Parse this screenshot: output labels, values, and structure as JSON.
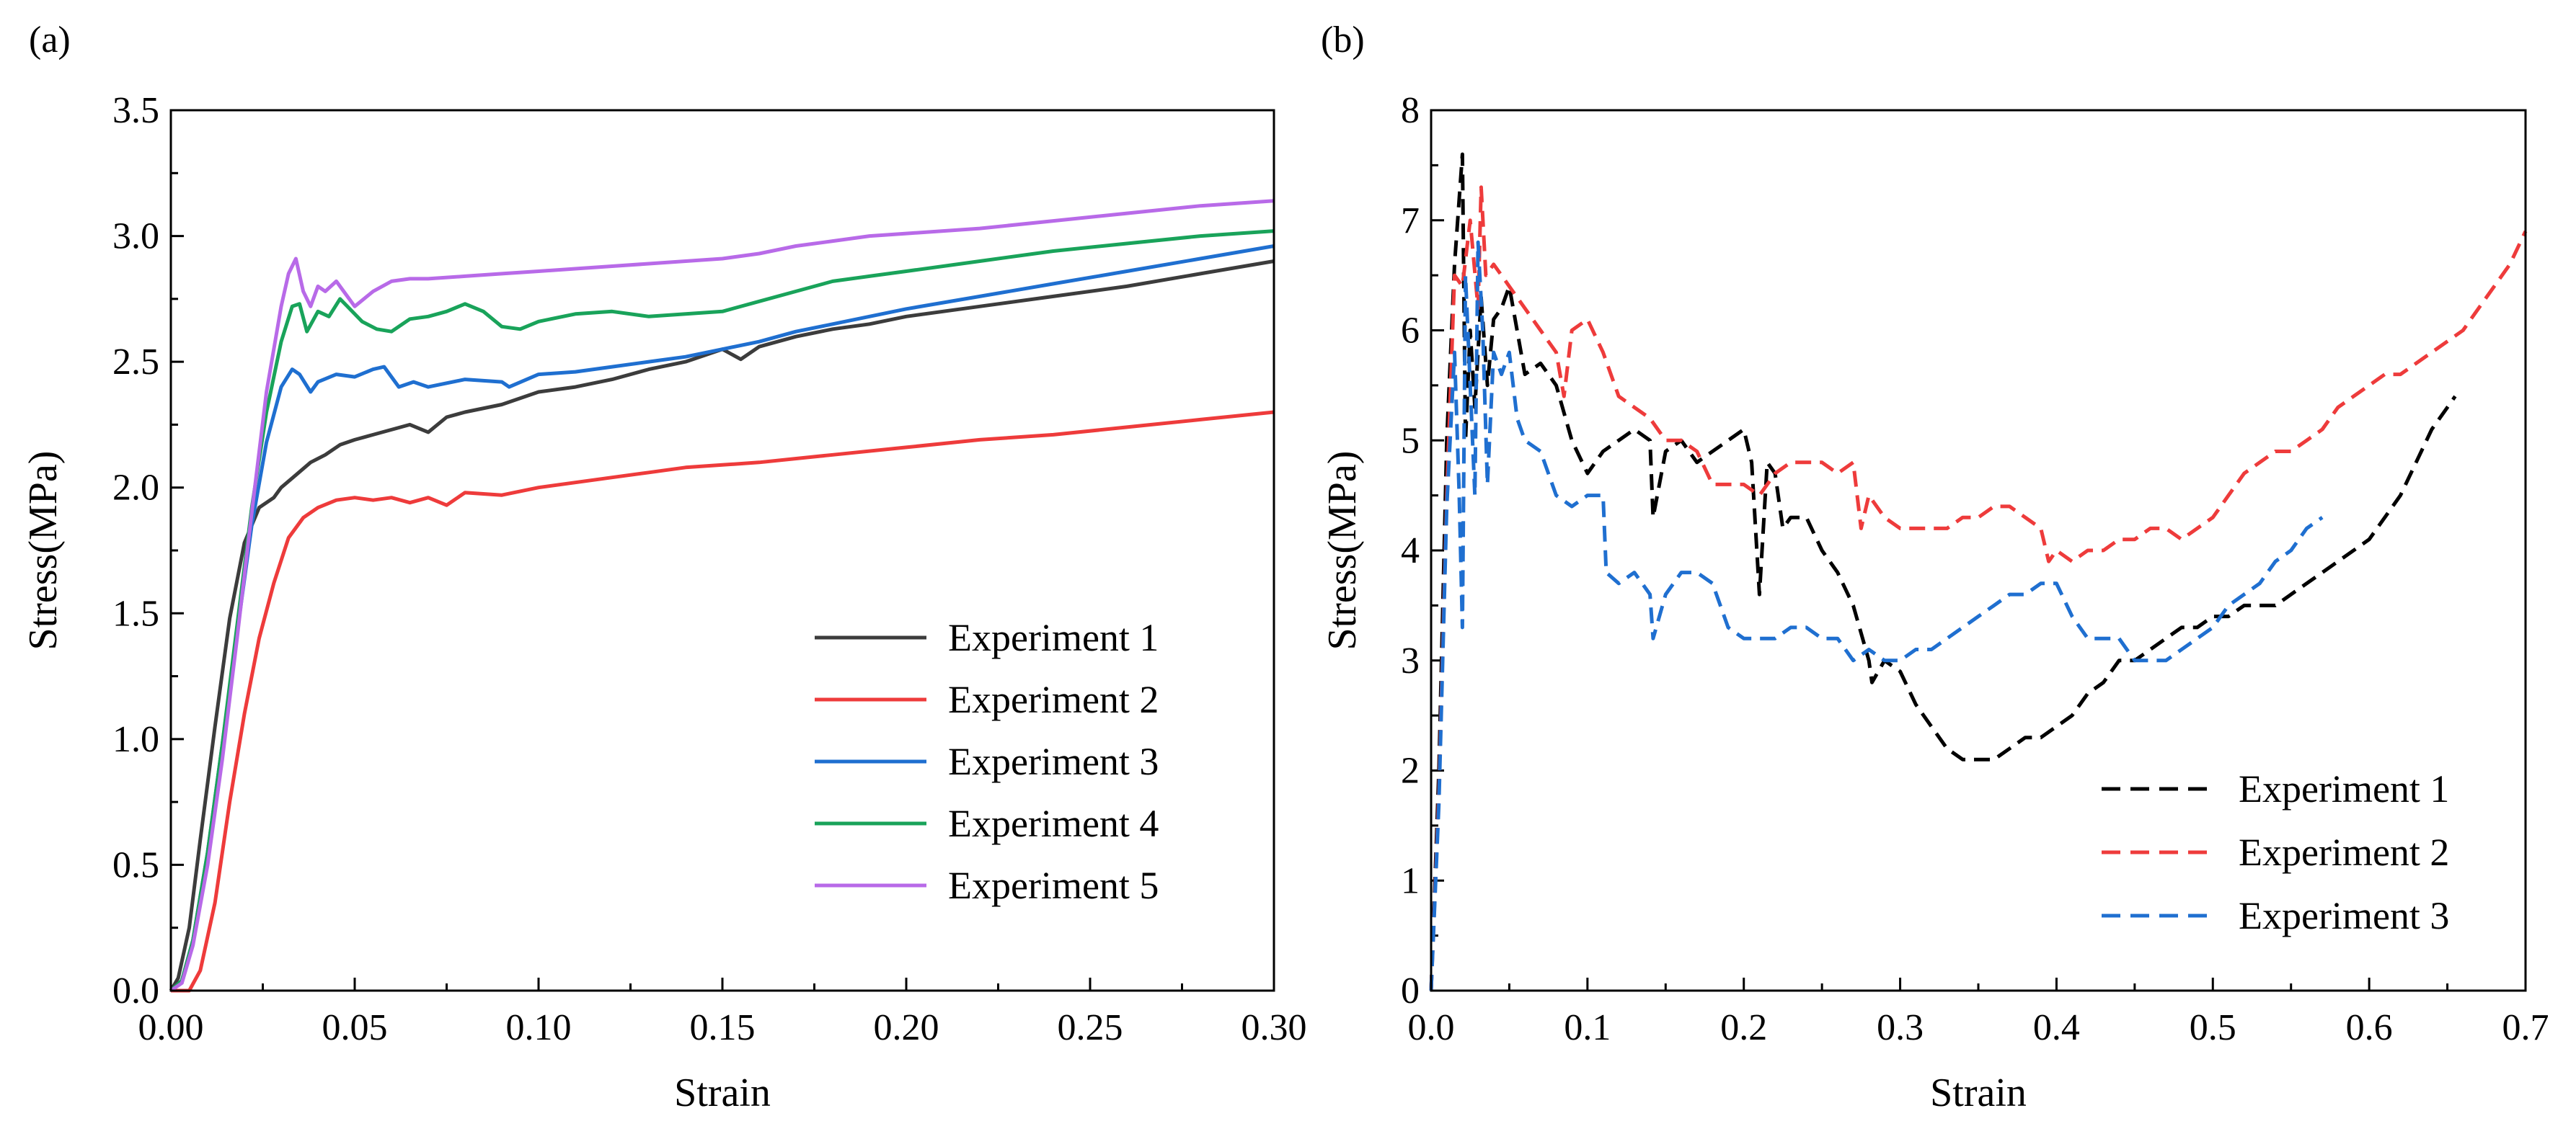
{
  "chart_data": [
    {
      "panel_label": "(a)",
      "type": "line",
      "xlabel": "Strain",
      "ylabel": "Stress(MPa)",
      "xlim": [
        0,
        0.3
      ],
      "ylim": [
        0,
        3.5
      ],
      "xticks": [
        "0.00",
        "0.05",
        "0.10",
        "0.15",
        "0.20",
        "0.25",
        "0.30"
      ],
      "xtick_values": [
        0,
        0.05,
        0.1,
        0.15,
        0.2,
        0.25,
        0.3
      ],
      "yticks": [
        "0.0",
        "0.5",
        "1.0",
        "1.5",
        "2.0",
        "2.5",
        "3.0",
        "3.5"
      ],
      "ytick_values": [
        0,
        0.5,
        1.0,
        1.5,
        2.0,
        2.5,
        3.0,
        3.5
      ],
      "legend_position": "bottom-right",
      "series": [
        {
          "name": "Experiment 1",
          "color": "#3c3c3c",
          "dash": "solid",
          "x": [
            0,
            0.002,
            0.005,
            0.008,
            0.012,
            0.016,
            0.02,
            0.024,
            0.028,
            0.03,
            0.034,
            0.038,
            0.042,
            0.046,
            0.05,
            0.055,
            0.06,
            0.065,
            0.07,
            0.075,
            0.08,
            0.09,
            0.1,
            0.11,
            0.12,
            0.13,
            0.14,
            0.15,
            0.155,
            0.16,
            0.17,
            0.18,
            0.19,
            0.2,
            0.22,
            0.24,
            0.26,
            0.28,
            0.3
          ],
          "y": [
            0,
            0.05,
            0.25,
            0.6,
            1.05,
            1.48,
            1.78,
            1.92,
            1.96,
            2.0,
            2.05,
            2.1,
            2.13,
            2.17,
            2.19,
            2.21,
            2.23,
            2.25,
            2.22,
            2.28,
            2.3,
            2.33,
            2.38,
            2.4,
            2.43,
            2.47,
            2.5,
            2.55,
            2.51,
            2.56,
            2.6,
            2.63,
            2.65,
            2.68,
            2.72,
            2.76,
            2.8,
            2.85,
            2.9
          ]
        },
        {
          "name": "Experiment 2",
          "color": "#ee3b3b",
          "dash": "solid",
          "x": [
            0,
            0.005,
            0.008,
            0.012,
            0.016,
            0.02,
            0.024,
            0.028,
            0.032,
            0.036,
            0.04,
            0.045,
            0.05,
            0.055,
            0.06,
            0.065,
            0.07,
            0.075,
            0.08,
            0.09,
            0.1,
            0.11,
            0.12,
            0.13,
            0.14,
            0.15,
            0.16,
            0.18,
            0.2,
            0.22,
            0.24,
            0.26,
            0.28,
            0.3
          ],
          "y": [
            0,
            0.0,
            0.08,
            0.35,
            0.75,
            1.1,
            1.4,
            1.62,
            1.8,
            1.88,
            1.92,
            1.95,
            1.96,
            1.95,
            1.96,
            1.94,
            1.96,
            1.93,
            1.98,
            1.97,
            2.0,
            2.02,
            2.04,
            2.06,
            2.08,
            2.09,
            2.1,
            2.13,
            2.16,
            2.19,
            2.21,
            2.24,
            2.27,
            2.3
          ]
        },
        {
          "name": "Experiment 3",
          "color": "#1f6fd0",
          "dash": "solid",
          "x": [
            0,
            0.003,
            0.006,
            0.01,
            0.014,
            0.018,
            0.022,
            0.026,
            0.03,
            0.033,
            0.035,
            0.038,
            0.04,
            0.045,
            0.05,
            0.055,
            0.058,
            0.062,
            0.066,
            0.07,
            0.08,
            0.09,
            0.092,
            0.1,
            0.11,
            0.12,
            0.13,
            0.14,
            0.15,
            0.16,
            0.17,
            0.18,
            0.19,
            0.2,
            0.22,
            0.24,
            0.26,
            0.28,
            0.3
          ],
          "y": [
            0,
            0.04,
            0.2,
            0.55,
            0.98,
            1.42,
            1.85,
            2.18,
            2.4,
            2.47,
            2.45,
            2.38,
            2.42,
            2.45,
            2.44,
            2.47,
            2.48,
            2.4,
            2.42,
            2.4,
            2.43,
            2.42,
            2.4,
            2.45,
            2.46,
            2.48,
            2.5,
            2.52,
            2.55,
            2.58,
            2.62,
            2.65,
            2.68,
            2.71,
            2.76,
            2.81,
            2.86,
            2.91,
            2.96
          ]
        },
        {
          "name": "Experiment 4",
          "color": "#19a35a",
          "dash": "solid",
          "x": [
            0,
            0.003,
            0.006,
            0.01,
            0.014,
            0.018,
            0.022,
            0.026,
            0.03,
            0.033,
            0.035,
            0.037,
            0.04,
            0.043,
            0.046,
            0.048,
            0.052,
            0.056,
            0.06,
            0.065,
            0.07,
            0.075,
            0.08,
            0.085,
            0.09,
            0.095,
            0.1,
            0.11,
            0.12,
            0.13,
            0.14,
            0.15,
            0.16,
            0.17,
            0.18,
            0.19,
            0.2,
            0.22,
            0.24,
            0.26,
            0.28,
            0.3
          ],
          "y": [
            0,
            0.04,
            0.2,
            0.55,
            0.98,
            1.45,
            1.92,
            2.3,
            2.58,
            2.72,
            2.73,
            2.62,
            2.7,
            2.68,
            2.75,
            2.72,
            2.66,
            2.63,
            2.62,
            2.67,
            2.68,
            2.7,
            2.73,
            2.7,
            2.64,
            2.63,
            2.66,
            2.69,
            2.7,
            2.68,
            2.69,
            2.7,
            2.74,
            2.78,
            2.82,
            2.84,
            2.86,
            2.9,
            2.94,
            2.97,
            3.0,
            3.02
          ]
        },
        {
          "name": "Experiment 5",
          "color": "#b86ae8",
          "dash": "solid",
          "x": [
            0,
            0.003,
            0.006,
            0.01,
            0.014,
            0.018,
            0.022,
            0.026,
            0.03,
            0.032,
            0.034,
            0.036,
            0.038,
            0.04,
            0.042,
            0.045,
            0.048,
            0.05,
            0.055,
            0.06,
            0.065,
            0.07,
            0.08,
            0.09,
            0.1,
            0.11,
            0.12,
            0.13,
            0.14,
            0.15,
            0.16,
            0.17,
            0.18,
            0.19,
            0.2,
            0.22,
            0.24,
            0.26,
            0.28,
            0.3
          ],
          "y": [
            0,
            0.03,
            0.18,
            0.5,
            0.92,
            1.4,
            1.9,
            2.38,
            2.72,
            2.85,
            2.91,
            2.78,
            2.72,
            2.8,
            2.78,
            2.82,
            2.76,
            2.72,
            2.78,
            2.82,
            2.83,
            2.83,
            2.84,
            2.85,
            2.86,
            2.87,
            2.88,
            2.89,
            2.9,
            2.91,
            2.93,
            2.96,
            2.98,
            3.0,
            3.01,
            3.03,
            3.06,
            3.09,
            3.12,
            3.14
          ]
        }
      ]
    },
    {
      "panel_label": "(b)",
      "type": "line",
      "xlabel": "Strain",
      "ylabel": "Stress(MPa)",
      "xlim": [
        0,
        0.7
      ],
      "ylim": [
        0,
        8
      ],
      "xticks": [
        "0.0",
        "0.1",
        "0.2",
        "0.3",
        "0.4",
        "0.5",
        "0.6",
        "0.7"
      ],
      "xtick_values": [
        0,
        0.1,
        0.2,
        0.3,
        0.4,
        0.5,
        0.6,
        0.7
      ],
      "yticks": [
        "0",
        "1",
        "2",
        "3",
        "4",
        "5",
        "6",
        "7",
        "8"
      ],
      "ytick_values": [
        0,
        1,
        2,
        3,
        4,
        5,
        6,
        7,
        8
      ],
      "legend_position": "bottom-right",
      "series": [
        {
          "name": "Experiment 1",
          "color": "#000000",
          "dash": "dashed",
          "x": [
            0,
            0.005,
            0.01,
            0.015,
            0.02,
            0.022,
            0.025,
            0.028,
            0.032,
            0.036,
            0.04,
            0.045,
            0.05,
            0.06,
            0.07,
            0.08,
            0.09,
            0.1,
            0.11,
            0.12,
            0.13,
            0.14,
            0.142,
            0.15,
            0.16,
            0.17,
            0.18,
            0.19,
            0.2,
            0.205,
            0.21,
            0.215,
            0.22,
            0.225,
            0.23,
            0.24,
            0.25,
            0.26,
            0.27,
            0.28,
            0.282,
            0.29,
            0.3,
            0.31,
            0.32,
            0.33,
            0.34,
            0.35,
            0.36,
            0.37,
            0.38,
            0.39,
            0.4,
            0.41,
            0.42,
            0.43,
            0.44,
            0.45,
            0.46,
            0.47,
            0.48,
            0.49,
            0.5,
            0.51,
            0.52,
            0.53,
            0.54,
            0.55,
            0.56,
            0.57,
            0.58,
            0.59,
            0.6,
            0.61,
            0.62,
            0.63,
            0.64,
            0.65,
            0.655
          ],
          "y": [
            0,
            2.0,
            5.0,
            6.6,
            7.6,
            5.0,
            6.0,
            5.3,
            6.3,
            5.5,
            6.1,
            6.2,
            6.4,
            5.6,
            5.7,
            5.5,
            5.0,
            4.7,
            4.9,
            5.0,
            5.1,
            5.0,
            4.3,
            4.9,
            5.0,
            4.8,
            4.9,
            5.0,
            5.1,
            4.8,
            3.6,
            4.8,
            4.7,
            4.2,
            4.3,
            4.3,
            4.0,
            3.8,
            3.5,
            3.0,
            2.8,
            3.0,
            2.9,
            2.6,
            2.4,
            2.2,
            2.1,
            2.1,
            2.1,
            2.2,
            2.3,
            2.3,
            2.4,
            2.5,
            2.7,
            2.8,
            3.0,
            3.0,
            3.1,
            3.2,
            3.3,
            3.3,
            3.4,
            3.4,
            3.5,
            3.5,
            3.5,
            3.6,
            3.7,
            3.8,
            3.9,
            4.0,
            4.1,
            4.3,
            4.5,
            4.8,
            5.1,
            5.3,
            5.4
          ]
        },
        {
          "name": "Experiment 2",
          "color": "#ee3b3b",
          "dash": "dashed",
          "x": [
            0,
            0.005,
            0.01,
            0.015,
            0.02,
            0.025,
            0.03,
            0.032,
            0.035,
            0.04,
            0.045,
            0.05,
            0.06,
            0.07,
            0.08,
            0.085,
            0.09,
            0.1,
            0.11,
            0.12,
            0.13,
            0.14,
            0.15,
            0.16,
            0.17,
            0.18,
            0.19,
            0.2,
            0.21,
            0.22,
            0.23,
            0.24,
            0.25,
            0.26,
            0.27,
            0.275,
            0.28,
            0.29,
            0.3,
            0.31,
            0.32,
            0.33,
            0.34,
            0.35,
            0.36,
            0.37,
            0.38,
            0.39,
            0.395,
            0.4,
            0.41,
            0.42,
            0.43,
            0.44,
            0.45,
            0.46,
            0.47,
            0.48,
            0.49,
            0.5,
            0.51,
            0.52,
            0.53,
            0.54,
            0.55,
            0.56,
            0.57,
            0.58,
            0.59,
            0.6,
            0.61,
            0.62,
            0.63,
            0.64,
            0.65,
            0.66,
            0.67,
            0.68,
            0.69,
            0.7
          ],
          "y": [
            0,
            1.8,
            4.5,
            6.5,
            6.4,
            7.0,
            6.2,
            7.3,
            6.5,
            6.6,
            6.5,
            6.4,
            6.2,
            6.0,
            5.8,
            5.4,
            6.0,
            6.1,
            5.8,
            5.4,
            5.3,
            5.2,
            5.0,
            5.0,
            4.9,
            4.6,
            4.6,
            4.6,
            4.5,
            4.7,
            4.8,
            4.8,
            4.8,
            4.7,
            4.8,
            4.2,
            4.5,
            4.3,
            4.2,
            4.2,
            4.2,
            4.2,
            4.3,
            4.3,
            4.4,
            4.4,
            4.3,
            4.2,
            3.9,
            4.0,
            3.9,
            4.0,
            4.0,
            4.1,
            4.1,
            4.2,
            4.2,
            4.1,
            4.2,
            4.3,
            4.5,
            4.7,
            4.8,
            4.9,
            4.9,
            5.0,
            5.1,
            5.3,
            5.4,
            5.5,
            5.6,
            5.6,
            5.7,
            5.8,
            5.9,
            6.0,
            6.2,
            6.4,
            6.6,
            6.9
          ]
        },
        {
          "name": "Experiment 3",
          "color": "#1f6fd0",
          "dash": "dashed",
          "x": [
            0,
            0.005,
            0.01,
            0.015,
            0.018,
            0.02,
            0.022,
            0.025,
            0.028,
            0.03,
            0.033,
            0.036,
            0.04,
            0.045,
            0.05,
            0.055,
            0.06,
            0.07,
            0.08,
            0.09,
            0.1,
            0.11,
            0.112,
            0.12,
            0.13,
            0.14,
            0.142,
            0.15,
            0.16,
            0.17,
            0.18,
            0.19,
            0.2,
            0.21,
            0.22,
            0.23,
            0.24,
            0.25,
            0.26,
            0.27,
            0.28,
            0.29,
            0.3,
            0.31,
            0.32,
            0.33,
            0.34,
            0.35,
            0.36,
            0.37,
            0.38,
            0.39,
            0.4,
            0.41,
            0.42,
            0.43,
            0.44,
            0.45,
            0.46,
            0.47,
            0.48,
            0.49,
            0.5,
            0.51,
            0.52,
            0.53,
            0.54,
            0.55,
            0.56,
            0.57
          ],
          "y": [
            0,
            1.7,
            4.4,
            5.8,
            4.5,
            3.3,
            6.5,
            5.5,
            4.5,
            6.8,
            6.0,
            4.6,
            5.8,
            5.6,
            5.8,
            5.2,
            5.0,
            4.9,
            4.5,
            4.4,
            4.5,
            4.5,
            3.8,
            3.7,
            3.8,
            3.6,
            3.2,
            3.6,
            3.8,
            3.8,
            3.7,
            3.3,
            3.2,
            3.2,
            3.2,
            3.3,
            3.3,
            3.2,
            3.2,
            3.0,
            3.1,
            3.0,
            3.0,
            3.1,
            3.1,
            3.2,
            3.3,
            3.4,
            3.5,
            3.6,
            3.6,
            3.7,
            3.7,
            3.4,
            3.2,
            3.2,
            3.2,
            3.0,
            3.0,
            3.0,
            3.1,
            3.2,
            3.3,
            3.5,
            3.6,
            3.7,
            3.9,
            4.0,
            4.2,
            4.3
          ]
        }
      ]
    }
  ]
}
